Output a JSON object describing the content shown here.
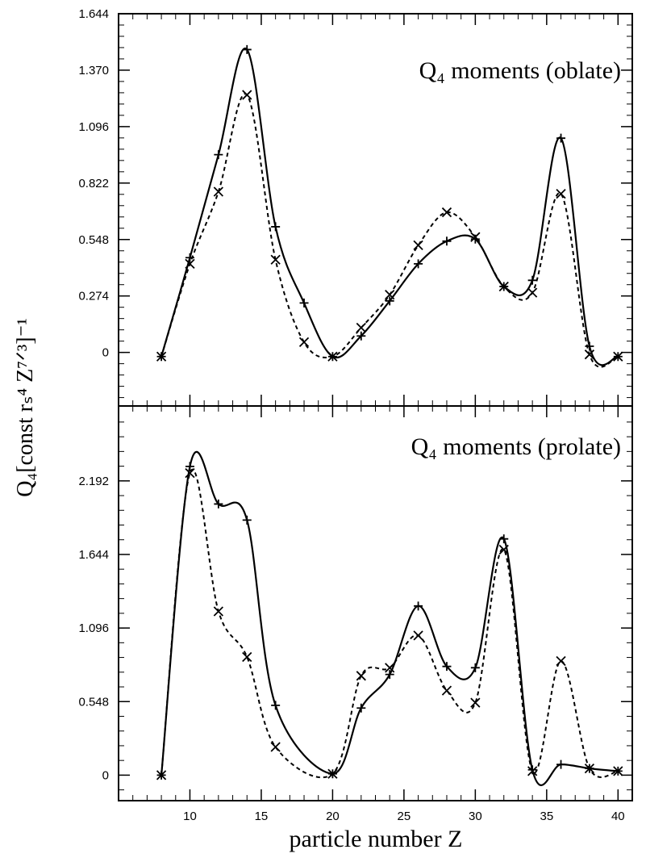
{
  "figure": {
    "ylabel": "Q₄[const rₛ⁴ Z⁷ᐟ³]⁻¹",
    "xlabel": "particle number Z"
  },
  "chart_data": [
    {
      "type": "line",
      "title": "Q₄ moments (oblate)",
      "xlim": [
        5,
        41
      ],
      "ylim": [
        -0.26,
        1.644
      ],
      "yticks": [
        0,
        0.274,
        0.548,
        0.822,
        1.096,
        1.37,
        1.644
      ],
      "ytick_labels": [
        "0",
        "0.274",
        "0.548",
        "0.822",
        "1.096",
        "1.370",
        "1.644"
      ],
      "xticks": [
        10,
        15,
        20,
        25,
        30,
        35,
        40
      ],
      "xtick_labels": [
        "10",
        "15",
        "20",
        "25",
        "30",
        "35",
        "40"
      ],
      "series": [
        {
          "style": "solid",
          "marker": "plus",
          "x": [
            8,
            10,
            12,
            14,
            16,
            18,
            20,
            22,
            24,
            26,
            28,
            30,
            32,
            34,
            36,
            38,
            40
          ],
          "values": [
            -0.02,
            0.46,
            0.96,
            1.47,
            0.61,
            0.24,
            -0.02,
            0.08,
            0.25,
            0.43,
            0.54,
            0.55,
            0.32,
            0.35,
            1.04,
            0.03,
            -0.02
          ]
        },
        {
          "style": "dashed",
          "marker": "x",
          "x": [
            8,
            10,
            12,
            14,
            16,
            18,
            20,
            22,
            24,
            26,
            28,
            30,
            32,
            34,
            36,
            38,
            40
          ],
          "values": [
            -0.02,
            0.43,
            0.78,
            1.25,
            0.45,
            0.05,
            -0.02,
            0.12,
            0.28,
            0.52,
            0.68,
            0.56,
            0.32,
            0.29,
            0.77,
            -0.01,
            -0.02
          ]
        }
      ]
    },
    {
      "type": "line",
      "title": "Q₄ moments (prolate)",
      "xlim": [
        5,
        41
      ],
      "ylim": [
        -0.19,
        2.75
      ],
      "yticks": [
        0,
        0.548,
        1.096,
        1.644,
        2.192
      ],
      "ytick_labels": [
        "0",
        "0.548",
        "1.096",
        "1.644",
        "2.192"
      ],
      "xticks": [
        10,
        15,
        20,
        25,
        30,
        35,
        40
      ],
      "xtick_labels": [
        "10",
        "15",
        "20",
        "25",
        "30",
        "35",
        "40"
      ],
      "series": [
        {
          "style": "solid",
          "marker": "plus",
          "x": [
            8,
            10,
            12,
            14,
            16,
            20,
            22,
            24,
            26,
            28,
            30,
            32,
            34,
            36,
            38,
            40
          ],
          "values": [
            0,
            2.3,
            2.02,
            1.9,
            0.52,
            0.01,
            0.5,
            0.75,
            1.26,
            0.81,
            0.8,
            1.76,
            0.04,
            0.08,
            0.05,
            0.03
          ]
        },
        {
          "style": "dashed",
          "marker": "x",
          "x": [
            8,
            10,
            12,
            14,
            16,
            20,
            22,
            24,
            26,
            28,
            30,
            32,
            34,
            36,
            38,
            40
          ],
          "values": [
            0,
            2.25,
            1.22,
            0.88,
            0.21,
            0.01,
            0.74,
            0.8,
            1.04,
            0.63,
            0.54,
            1.68,
            0.03,
            0.85,
            0.05,
            0.03
          ]
        }
      ]
    }
  ]
}
